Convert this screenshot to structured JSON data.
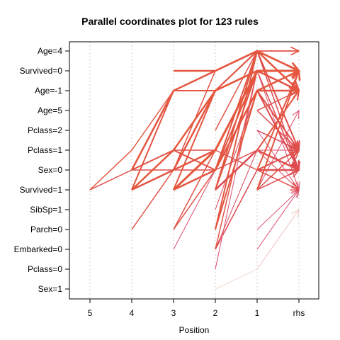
{
  "chart_data": {
    "type": "parallel-coordinates",
    "title": "Parallel coordinates plot for 123 rules",
    "xlabel": "Position",
    "x_ticks": [
      "5",
      "4",
      "3",
      "2",
      "1",
      "rhs"
    ],
    "y_ticks": [
      "Age=4",
      "Survived=0",
      "Age=-1",
      "Age=5",
      "Pclass=2",
      "Pclass=1",
      "Sex=0",
      "Survived=1",
      "SibSp=1",
      "Parch=0",
      "Embarked=0",
      "Pclass=0",
      "Sex=1"
    ],
    "grid": "vertical dotted at each position",
    "color_scale": [
      "#f0ead8",
      "#e87a9a",
      "#d84060",
      "#e65a3a"
    ],
    "rules": [
      {
        "path": [
          "Survived=1",
          "Sex=0",
          "Pclass=1",
          "Pclass=1",
          "Sex=0",
          "Survived=1"
        ],
        "w": 1.5,
        "c": 0.85
      },
      {
        "path": [
          "Survived=1",
          "Pclass=1",
          "Age=-1",
          "Age=-1",
          "Age=4",
          "Survived=0"
        ],
        "w": 1.5,
        "c": 0.95
      },
      {
        "path": [
          null,
          "Sex=0",
          "Age=-1",
          "Survived=0",
          "Age=4",
          "Survived=0"
        ],
        "w": 2.5,
        "c": 0.95
      },
      {
        "path": [
          null,
          "Sex=0",
          "Pclass=1",
          "Sex=0",
          "Age=4",
          "Survived=0"
        ],
        "w": 2,
        "c": 0.9
      },
      {
        "path": [
          null,
          "Survived=1",
          "Sex=0",
          "Pclass=1",
          "Survived=0",
          "Age=-1"
        ],
        "w": 2.5,
        "c": 0.92
      },
      {
        "path": [
          null,
          "Survived=1",
          "Pclass=1",
          "Age=-1",
          "Survived=0",
          "Survived=0"
        ],
        "w": 2.5,
        "c": 0.97
      },
      {
        "path": [
          null,
          "Survived=1",
          "Age=-1",
          "Age=-1",
          "Age=4",
          "Survived=0"
        ],
        "w": 2,
        "c": 0.93
      },
      {
        "path": [
          null,
          "Sex=0",
          "Sex=0",
          "Sex=0",
          "Pclass=1",
          "Sex=0"
        ],
        "w": 1.5,
        "c": 0.85
      },
      {
        "path": [
          null,
          "Parch=0",
          "Sex=0",
          "Survived=0",
          "Age=4",
          "Age=4"
        ],
        "w": 1.5,
        "c": 0.9
      },
      {
        "path": [
          null,
          null,
          "Survived=0",
          "Survived=0",
          "Age=4",
          "Age=-1"
        ],
        "w": 2.5,
        "c": 0.95
      },
      {
        "path": [
          null,
          null,
          "Survived=1",
          "Pclass=1",
          "Survived=0",
          "Survived=0"
        ],
        "w": 3,
        "c": 0.98
      },
      {
        "path": [
          null,
          null,
          "Survived=1",
          "Age=-1",
          "Age=4",
          "Survived=0"
        ],
        "w": 2,
        "c": 0.95
      },
      {
        "path": [
          null,
          null,
          "Survived=1",
          "Sex=0",
          "Age=-1",
          "Age=-1"
        ],
        "w": 2.5,
        "c": 0.93
      },
      {
        "path": [
          null,
          null,
          "Parch=0",
          "Pclass=1",
          "Survived=0",
          "Survived=0"
        ],
        "w": 1.5,
        "c": 0.9
      },
      {
        "path": [
          null,
          null,
          "Parch=0",
          "Sex=0",
          "Age=4",
          "Age=4"
        ],
        "w": 1.5,
        "c": 0.88
      },
      {
        "path": [
          null,
          null,
          "Embarked=0",
          "Sex=0",
          "Pclass=1",
          "Pclass=1"
        ],
        "w": 1,
        "c": 0.6
      },
      {
        "path": [
          null,
          null,
          "Sex=0",
          "Age=-1",
          "Survived=0",
          "Survived=0"
        ],
        "w": 2.5,
        "c": 0.95
      },
      {
        "path": [
          null,
          null,
          null,
          "Survived=1",
          "Pclass=1",
          "Sex=0"
        ],
        "w": 2.5,
        "c": 0.8
      },
      {
        "path": [
          null,
          null,
          null,
          "Survived=1",
          "Survived=0",
          "Age=-1"
        ],
        "w": 2,
        "c": 0.9
      },
      {
        "path": [
          null,
          null,
          null,
          "Survived=1",
          "Age=4",
          "Survived=0"
        ],
        "w": 2,
        "c": 0.95
      },
      {
        "path": [
          null,
          null,
          null,
          "Embarked=0",
          "Survived=0",
          "Survived=0"
        ],
        "w": 1.5,
        "c": 0.92
      },
      {
        "path": [
          null,
          null,
          null,
          "Embarked=0",
          "Sex=0",
          "Sex=0"
        ],
        "w": 1.5,
        "c": 0.8
      },
      {
        "path": [
          null,
          null,
          null,
          "Embarked=0",
          "Pclass=1",
          "Survived=1"
        ],
        "w": 1,
        "c": 0.75
      },
      {
        "path": [
          null,
          null,
          null,
          "Parch=0",
          "Age=4",
          "Age=-1"
        ],
        "w": 2,
        "c": 0.93
      },
      {
        "path": [
          null,
          null,
          null,
          "Parch=0",
          "Age=-1",
          "Survived=0"
        ],
        "w": 2,
        "c": 0.95
      },
      {
        "path": [
          null,
          null,
          null,
          "Sex=0",
          "Survived=0",
          "Survived=0"
        ],
        "w": 2,
        "c": 0.96
      },
      {
        "path": [
          null,
          null,
          null,
          "SibSp=1",
          "Age=-1",
          "Pclass=1"
        ],
        "w": 1,
        "c": 0.7
      },
      {
        "path": [
          null,
          null,
          null,
          "Pclass=0",
          "Survived=0",
          "Survived=0"
        ],
        "w": 1,
        "c": 0.6
      },
      {
        "path": [
          null,
          null,
          null,
          "Pclass=2",
          "Age=4",
          "Survived=0"
        ],
        "w": 1.5,
        "c": 0.9
      },
      {
        "path": [
          null,
          null,
          null,
          "Sex=1",
          "Pclass=0",
          "SibSp=1"
        ],
        "w": 1,
        "c": 0.05
      },
      {
        "path": [
          null,
          null,
          null,
          null,
          "Survived=1",
          "Sex=0"
        ],
        "w": 1.5,
        "c": 0.8
      },
      {
        "path": [
          null,
          null,
          null,
          null,
          "Survived=1",
          "Pclass=1"
        ],
        "w": 1.5,
        "c": 0.85
      },
      {
        "path": [
          null,
          null,
          null,
          null,
          "Survived=1",
          "Age=5"
        ],
        "w": 1,
        "c": 0.6
      },
      {
        "path": [
          null,
          null,
          null,
          null,
          "Survived=1",
          "Survived=0"
        ],
        "w": 2,
        "c": 0.95
      },
      {
        "path": [
          null,
          null,
          null,
          null,
          "Sex=0",
          "Pclass=1"
        ],
        "w": 2,
        "c": 0.85
      },
      {
        "path": [
          null,
          null,
          null,
          null,
          "Sex=0",
          "Sex=0"
        ],
        "w": 2.5,
        "c": 0.83
      },
      {
        "path": [
          null,
          null,
          null,
          null,
          "Sex=0",
          "Survived=1"
        ],
        "w": 1,
        "c": 0.65
      },
      {
        "path": [
          null,
          null,
          null,
          null,
          "Sex=0",
          "Survived=0"
        ],
        "w": 2,
        "c": 0.95
      },
      {
        "path": [
          null,
          null,
          null,
          null,
          "Pclass=1",
          "Age=-1"
        ],
        "w": 2,
        "c": 0.93
      },
      {
        "path": [
          null,
          null,
          null,
          null,
          "Pclass=1",
          "Sex=0"
        ],
        "w": 1.5,
        "c": 0.8
      },
      {
        "path": [
          null,
          null,
          null,
          null,
          "Age=5",
          "Age=-1"
        ],
        "w": 1.5,
        "c": 0.88
      },
      {
        "path": [
          null,
          null,
          null,
          null,
          "Age=5",
          "Pclass=1"
        ],
        "w": 1.5,
        "c": 0.78
      },
      {
        "path": [
          null,
          null,
          null,
          null,
          "Age=-1",
          "Survived=0"
        ],
        "w": 2.5,
        "c": 0.97
      },
      {
        "path": [
          null,
          null,
          null,
          null,
          "Age=-1",
          "Pclass=1"
        ],
        "w": 2,
        "c": 0.85
      },
      {
        "path": [
          null,
          null,
          null,
          null,
          "Age=-1",
          "Sex=0"
        ],
        "w": 2,
        "c": 0.82
      },
      {
        "path": [
          null,
          null,
          null,
          null,
          "Age=4",
          "Survived=0"
        ],
        "w": 2.5,
        "c": 0.97
      },
      {
        "path": [
          null,
          null,
          null,
          null,
          "Age=4",
          "Pclass=1"
        ],
        "w": 2,
        "c": 0.85
      },
      {
        "path": [
          null,
          null,
          null,
          null,
          "Age=4",
          "Sex=0"
        ],
        "w": 1.5,
        "c": 0.8
      },
      {
        "path": [
          null,
          null,
          null,
          null,
          "Age=4",
          "Age=4"
        ],
        "w": 1,
        "c": 0.4
      },
      {
        "path": [
          null,
          null,
          null,
          null,
          "Survived=0",
          "Survived=0"
        ],
        "w": 2.5,
        "c": 0.97
      },
      {
        "path": [
          null,
          null,
          null,
          null,
          "Survived=0",
          "Sex=0"
        ],
        "w": 1.5,
        "c": 0.8
      },
      {
        "path": [
          null,
          null,
          null,
          null,
          "Survived=0",
          "Survived=1"
        ],
        "w": 1,
        "c": 0.6
      },
      {
        "path": [
          null,
          null,
          null,
          null,
          "Pclass=2",
          "Pclass=1"
        ],
        "w": 1.5,
        "c": 0.7
      },
      {
        "path": [
          null,
          null,
          null,
          null,
          "Pclass=2",
          "Survived=1"
        ],
        "w": 1,
        "c": 0.55
      },
      {
        "path": [
          null,
          null,
          null,
          null,
          "Parch=0",
          "Survived=1"
        ],
        "w": 1,
        "c": 0.55
      },
      {
        "path": [
          null,
          null,
          null,
          null,
          "Embarked=0",
          "Survived=1"
        ],
        "w": 1,
        "c": 0.6
      },
      {
        "path": [
          null,
          null,
          null,
          null,
          "Pclass=0",
          "SibSp=1"
        ],
        "w": 1,
        "c": 0.1
      }
    ]
  }
}
